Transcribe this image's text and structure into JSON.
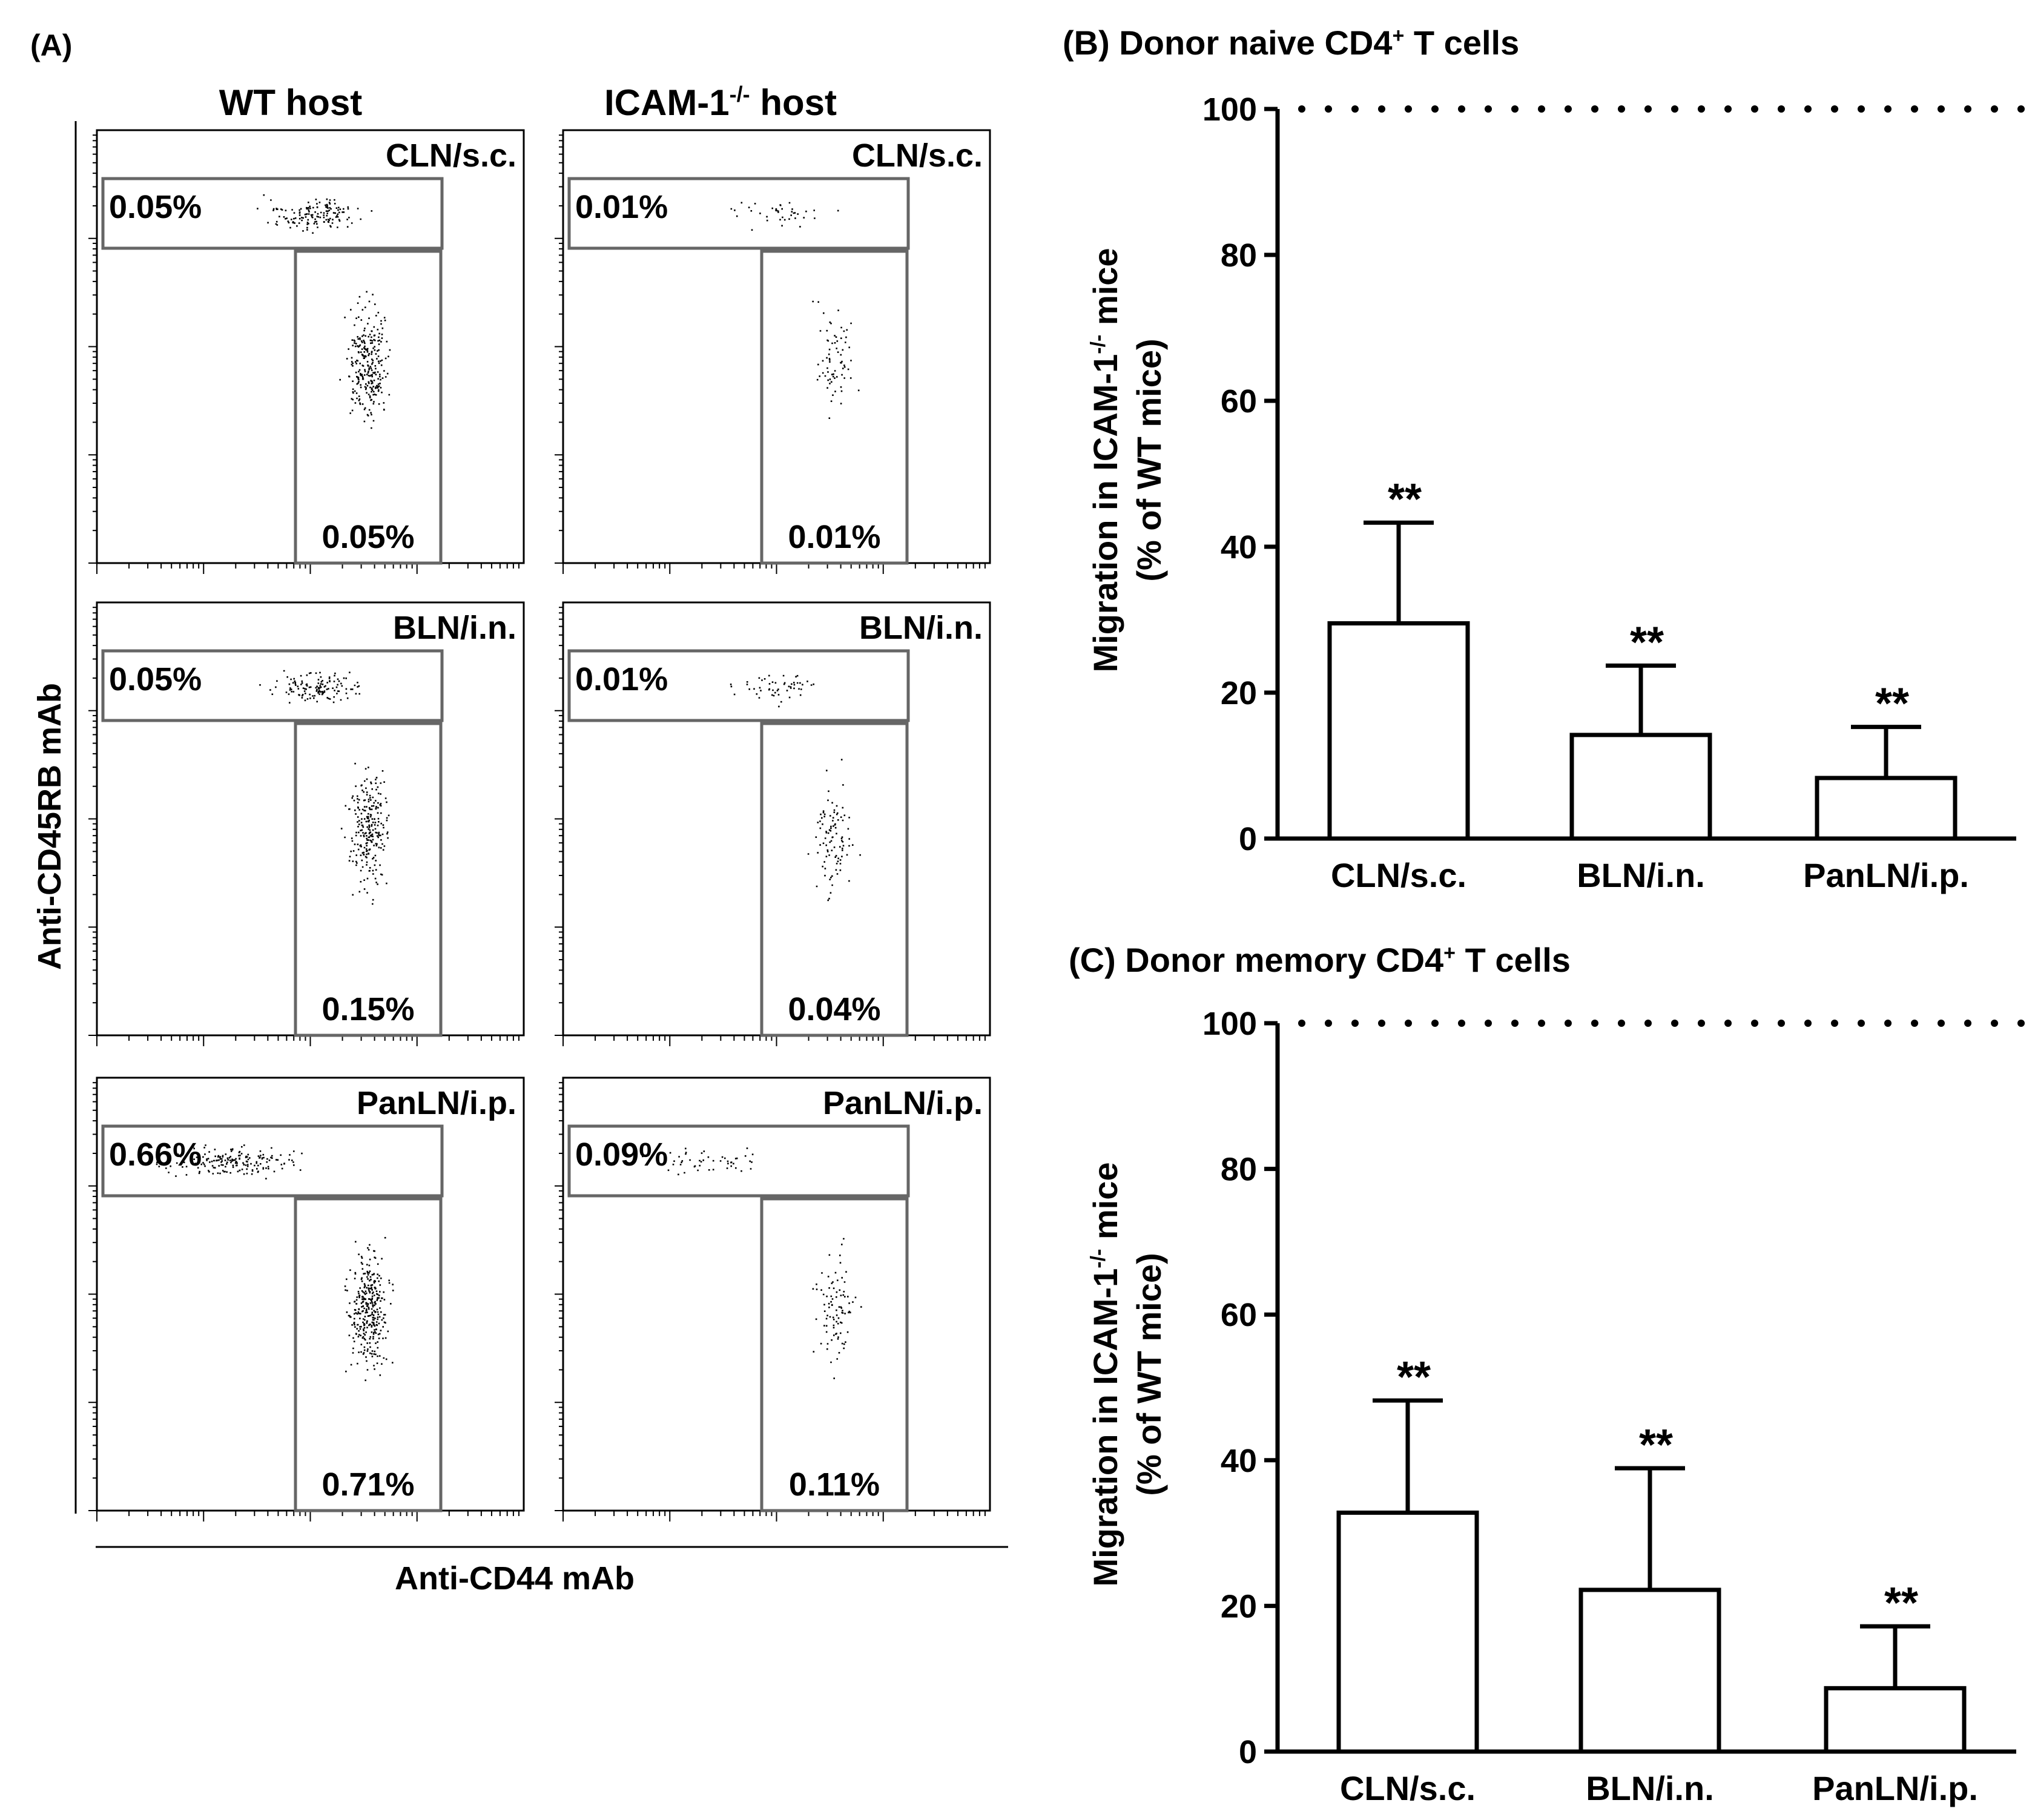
{
  "panel_a": {
    "label": "(A)",
    "col_titles": {
      "wt": "WT host",
      "icam_main": "ICAM-1",
      "icam_sup": "-/-",
      "icam_tail": " host"
    },
    "y_axis_label": "Anti-CD45RB mAb",
    "x_axis_label": "Anti-CD44 mAb",
    "plots": [
      {
        "title": "CLN/s.c.",
        "upper_pct": "0.05%",
        "lower_pct": "0.05%",
        "density": 420
      },
      {
        "title": "CLN/s.c.",
        "upper_pct": "0.01%",
        "lower_pct": "0.01%",
        "density": 110
      },
      {
        "title": "BLN/i.n.",
        "upper_pct": "0.05%",
        "lower_pct": "0.15%",
        "density": 380
      },
      {
        "title": "BLN/i.n.",
        "upper_pct": "0.01%",
        "lower_pct": "0.04%",
        "density": 150
      },
      {
        "title": "PanLN/i.p.",
        "upper_pct": "0.66%",
        "lower_pct": "0.71%",
        "density": 520
      },
      {
        "title": "PanLN/i.p.",
        "upper_pct": "0.09%",
        "lower_pct": "0.11%",
        "density": 140
      }
    ]
  },
  "chart_data": [
    {
      "type": "bar",
      "panel": "(B)",
      "title_main": "Donor naive CD4",
      "title_sup": "+",
      "title_tail": " T cells",
      "categories": [
        "CLN/s.c.",
        "BLN/i.n.",
        "PanLN/i.p."
      ],
      "values": [
        29.5,
        14.2,
        8.3
      ],
      "error_upper": [
        43.3,
        23.7,
        15.3
      ],
      "annotations": [
        "**",
        "**",
        "**"
      ],
      "ylabel_line1_main": "Migration in ICAM-1",
      "ylabel_line1_sup": "-/-",
      "ylabel_line1_tail": " mice",
      "ylabel_line2": "(% of WT mice)",
      "ylim": [
        0,
        100
      ],
      "yticks": [
        0,
        20,
        40,
        60,
        80,
        100
      ],
      "reference_line": 100
    },
    {
      "type": "bar",
      "panel": "(C)",
      "title_main": "Donor memory CD4",
      "title_sup": "+",
      "title_tail": " T cells",
      "categories": [
        "CLN/s.c.",
        "BLN/i.n.",
        "PanLN/i.p."
      ],
      "values": [
        32.8,
        22.2,
        8.7
      ],
      "error_upper": [
        48.2,
        38.9,
        17.2
      ],
      "annotations": [
        "**",
        "**",
        "**"
      ],
      "ylabel_line1_main": "Migration in ICAM-1",
      "ylabel_line1_sup": "-/-",
      "ylabel_line1_tail": " mice",
      "ylabel_line2": "(% of WT mice)",
      "ylim": [
        0,
        100
      ],
      "yticks": [
        0,
        20,
        40,
        60,
        80,
        100
      ],
      "reference_line": 100
    }
  ]
}
